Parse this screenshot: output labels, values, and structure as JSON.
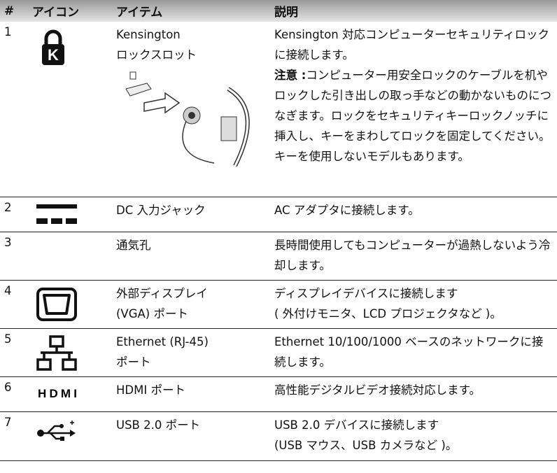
{
  "table": {
    "header": [
      "#",
      "アイコン",
      "アイテム",
      "説明"
    ],
    "rows": [
      {
        "number": "1",
        "icon": "K",
        "item": [
          "Kensington",
          "ロックスロット"
        ],
        "description": [
          "Kensington 対応コンピューターセキュリティロックに接続します。"
        ],
        "note_label": "注意 :",
        "note": "コンピューター用安全ロックのケーブルを机やロックした引き出しの取っ手などの動かないものにつなぎます。ロックをセキュリティキーロックノッチに挿入し、キーをまわしてロックを固定してください。キーを使用しないモデルもあります。"
      },
      {
        "number": "2",
        "item": [
          "DC 入力ジャック"
        ],
        "description": [
          "AC アダプタに接続します。"
        ]
      },
      {
        "number": "3",
        "item": [
          "通気孔"
        ],
        "description": [
          "長時間使用してもコンピューターが過熱しないよう冷却します。"
        ]
      },
      {
        "number": "4",
        "item": [
          "外部ディスプレイ",
          "(VGA) ポート"
        ],
        "description": [
          "ディスプレイデバイスに接続します",
          "( 外付けモニタ、LCD プロジェクタなど )。"
        ]
      },
      {
        "number": "5",
        "item": [
          "Ethernet (RJ-45)",
          "ポート"
        ],
        "description": [
          "Ethernet 10/100/1000 ベースのネットワークに接続します。"
        ]
      },
      {
        "number": "6",
        "icon": "HDMI",
        "item": [
          "HDMI ポート"
        ],
        "description": [
          "高性能デジタルビデオ接続対応します。"
        ]
      },
      {
        "number": "7",
        "item": [
          "USB 2.0 ポート"
        ],
        "description": [
          "USB 2.0 デバイスに接続します",
          "(USB マウス、USB カメラなど )。"
        ]
      }
    ]
  }
}
